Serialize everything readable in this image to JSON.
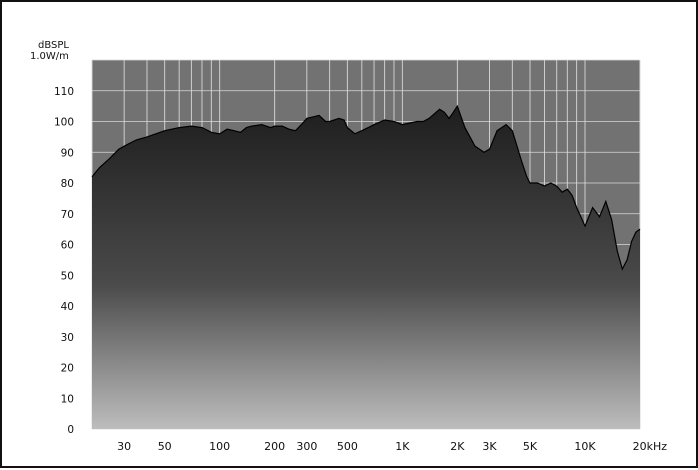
{
  "chart_data": {
    "type": "area",
    "xscale": "log",
    "xlim": [
      20,
      20000
    ],
    "ylim": [
      0,
      120
    ],
    "ylabel_line1": "dBSPL",
    "ylabel_line2": "1.0W/m",
    "yticks": [
      0,
      10,
      20,
      30,
      40,
      50,
      60,
      70,
      80,
      90,
      100,
      110
    ],
    "ytick_labels": [
      "0",
      "10",
      "20",
      "30",
      "40",
      "50",
      "60",
      "70",
      "80",
      "90",
      "100",
      "110"
    ],
    "xticks": [
      {
        "value": 30,
        "label": "30"
      },
      {
        "value": 50,
        "label": "50"
      },
      {
        "value": 100,
        "label": "100"
      },
      {
        "value": 200,
        "label": "200"
      },
      {
        "value": 300,
        "label": "300"
      },
      {
        "value": 500,
        "label": "500"
      },
      {
        "value": 1000,
        "label": "1K"
      },
      {
        "value": 2000,
        "label": "2K"
      },
      {
        "value": 3000,
        "label": "3K"
      },
      {
        "value": 5000,
        "label": "5K"
      },
      {
        "value": 10000,
        "label": "10K"
      },
      {
        "value": 20000,
        "label": "20kHz"
      }
    ],
    "grid": true,
    "colors": {
      "frame_border": "#111111",
      "plot_bg": "#727272",
      "gridline": "#d8d8d8",
      "fill_top": "#1e1e1e",
      "fill_mid": "#4a4a4a",
      "fill_bottom": "#bdbdbd",
      "curve": "#000000"
    },
    "x": [
      20,
      22,
      25,
      28,
      30,
      35,
      40,
      50,
      60,
      70,
      80,
      90,
      100,
      110,
      120,
      130,
      140,
      150,
      170,
      190,
      200,
      220,
      240,
      260,
      280,
      300,
      350,
      380,
      400,
      450,
      480,
      500,
      550,
      600,
      650,
      700,
      800,
      900,
      1000,
      1100,
      1200,
      1300,
      1400,
      1600,
      1700,
      1800,
      1900,
      2000,
      2200,
      2500,
      2800,
      3000,
      3300,
      3700,
      4000,
      4500,
      4800,
      5000,
      5500,
      6000,
      6500,
      7000,
      7500,
      8000,
      8500,
      9000,
      10000,
      11000,
      12000,
      13000,
      14000,
      15000,
      16000,
      17000,
      18000,
      19000,
      20000
    ],
    "y": [
      82,
      85,
      88,
      91,
      92,
      94,
      95,
      97,
      98,
      98.5,
      98,
      96.5,
      96,
      97.5,
      97,
      96.5,
      98,
      98.5,
      99,
      98,
      98.5,
      98.5,
      97.5,
      97,
      99,
      101,
      102,
      100,
      100,
      101,
      100.5,
      98,
      96,
      97,
      98,
      99,
      100.5,
      100,
      99,
      99.5,
      100,
      100,
      101,
      104,
      103,
      101,
      103,
      105,
      98,
      92,
      90,
      91,
      97,
      99,
      97,
      87,
      82,
      80,
      80,
      79,
      80,
      79,
      77,
      78,
      76,
      72,
      66,
      72,
      69,
      74,
      68,
      58,
      52,
      55,
      61,
      64,
      65
    ]
  }
}
